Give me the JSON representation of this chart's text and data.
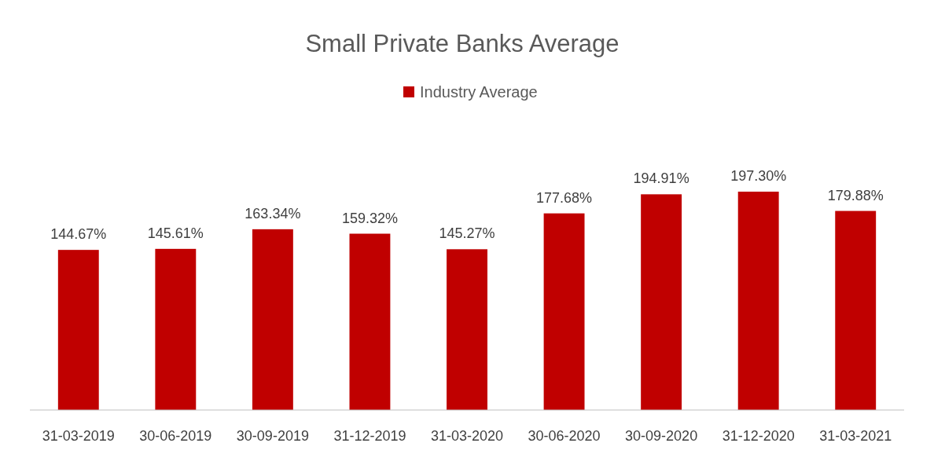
{
  "chart_data": {
    "type": "bar",
    "title": "Small Private Banks Average",
    "categories": [
      "31-03-2019",
      "30-06-2019",
      "30-09-2019",
      "31-12-2019",
      "31-03-2020",
      "30-06-2020",
      "30-09-2020",
      "31-12-2020",
      "31-03-2021"
    ],
    "series": [
      {
        "name": "Industry Average",
        "color": "#c00000",
        "values": [
          144.67,
          145.61,
          163.34,
          159.32,
          145.27,
          177.68,
          194.91,
          197.3,
          179.88
        ],
        "value_labels": [
          "144.67%",
          "145.61%",
          "163.34%",
          "159.32%",
          "145.27%",
          "177.68%",
          "194.91%",
          "197.30%",
          "179.88%"
        ]
      }
    ],
    "legend": "top",
    "grid": false
  }
}
